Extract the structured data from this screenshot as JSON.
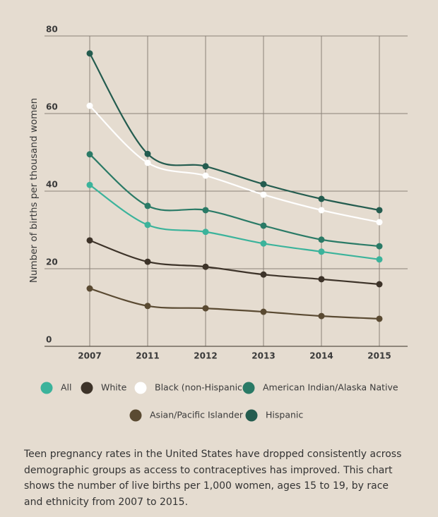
{
  "chart_data": {
    "type": "line",
    "y_label": "Number of births per thousand women",
    "categories": [
      "2007",
      "2011",
      "2012",
      "2013",
      "2014",
      "2015"
    ],
    "series": [
      {
        "name": "All",
        "color": "#3bb39b",
        "values": [
          41.6,
          31.3,
          29.5,
          26.5,
          24.4,
          22.4
        ]
      },
      {
        "name": "White",
        "color": "#3d3329",
        "values": [
          27.3,
          21.8,
          20.5,
          18.5,
          17.3,
          16.0
        ]
      },
      {
        "name": "Black (non-Hispanic",
        "color": "#ffffff",
        "values": [
          62.0,
          47.3,
          44.0,
          39.1,
          35.1,
          32.0
        ]
      },
      {
        "name": "American Indian/Alaska Native",
        "color": "#2a7a66",
        "values": [
          49.5,
          36.2,
          35.1,
          31.1,
          27.5,
          25.8
        ]
      },
      {
        "name": "Asian/Pacific Islander",
        "color": "#5a4a32",
        "values": [
          14.9,
          10.4,
          9.8,
          8.9,
          7.8,
          7.1
        ]
      },
      {
        "name": "Hispanic",
        "color": "#245c4f",
        "values": [
          75.5,
          49.6,
          46.4,
          41.8,
          38.0,
          35.1
        ]
      }
    ],
    "ylim": [
      0,
      80
    ],
    "yticks": [
      0,
      20,
      40,
      60,
      80
    ],
    "grid": true
  },
  "caption": "Teen pregnancy rates in the United States have dropped consistently across demographic groups as access to contraceptives has improved. This chart shows the number of live births per 1,000 women, ages 15 to 19, by race and ethnicity from 2007 to 2015."
}
